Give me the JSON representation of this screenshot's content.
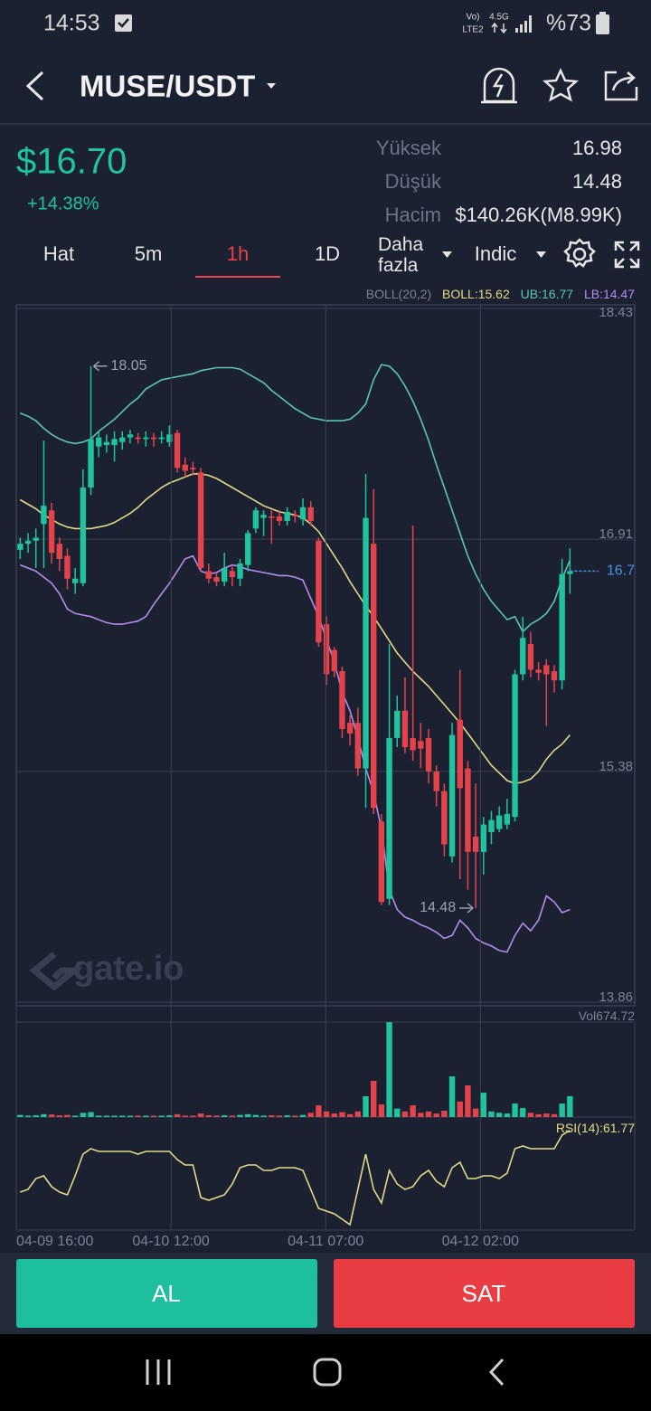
{
  "status_bar": {
    "time": "14:53",
    "volte": "Vo)",
    "lte": "LTE2",
    "net": "4.5G",
    "battery": "%73"
  },
  "header": {
    "pair": "MUSE/USDT"
  },
  "ticker": {
    "price": "$16.70",
    "change": "+14.38%",
    "stats": [
      {
        "label": "Yüksek",
        "value": "16.98"
      },
      {
        "label": "Düşük",
        "value": "14.48"
      },
      {
        "label": "Hacim",
        "value": "$140.26K(M8.99K)"
      }
    ]
  },
  "tabs": [
    "Hat",
    "5m",
    "1h",
    "1D",
    "Daha fazla",
    "Indic"
  ],
  "active_tab": 2,
  "chart_data": {
    "type": "candlestick",
    "up_color": "#1fc39d",
    "down_color": "#e5434b",
    "xlim": [
      -0.5,
      78.25
    ],
    "xticks": [
      {
        "value": -0.5,
        "label": "04-09 16:00"
      },
      {
        "value": 19.2,
        "label": "04-10 12:00"
      },
      {
        "value": 38.9,
        "label": "04-11 07:00"
      },
      {
        "value": 58.6,
        "label": "04-12 02:00"
      }
    ],
    "ylim": [
      13.86,
      18.43
    ],
    "yticks": [
      18.43,
      16.91,
      15.38,
      13.86
    ],
    "grid": true,
    "open": [
      16.84,
      16.88,
      16.9,
      17.01,
      17.1,
      16.88,
      16.8,
      16.62,
      16.62,
      17.25,
      17.52,
      17.53,
      17.53,
      17.55,
      17.58,
      17.58,
      17.57,
      17.58,
      17.57,
      17.55,
      17.61,
      17.4,
      17.38,
      17.35,
      16.7,
      16.66,
      16.63,
      16.7,
      16.65,
      16.74,
      16.98,
      17.05,
      17.06,
      17.06,
      17.03,
      17.07,
      17.04,
      17.12,
      16.9,
      16.35,
      16.18,
      16.04,
      15.7,
      15.7,
      15.4,
      16.88,
      15.05,
      14.54,
      15.6,
      15.78,
      15.6,
      15.58,
      15.6,
      15.38,
      15.25,
      14.82,
      15.72,
      15.4,
      14.95,
      14.85,
      14.98,
      15.0,
      15.03,
      15.08,
      16.02,
      16.22,
      16.05,
      16.08,
      16.04,
      15.98,
      16.68
    ],
    "high": [
      16.92,
      16.95,
      16.98,
      17.56,
      17.15,
      16.92,
      16.85,
      16.72,
      17.37,
      18.05,
      17.62,
      17.6,
      17.62,
      17.62,
      17.63,
      17.61,
      17.62,
      17.61,
      17.62,
      17.66,
      17.63,
      17.45,
      17.42,
      17.38,
      16.75,
      16.69,
      16.82,
      16.73,
      16.78,
      16.97,
      17.12,
      17.1,
      17.1,
      17.1,
      17.12,
      17.1,
      17.18,
      17.16,
      16.92,
      16.4,
      16.2,
      16.07,
      15.75,
      15.8,
      17.34,
      17.24,
      15.1,
      16.22,
      15.88,
      16.0,
      17.0,
      15.7,
      15.66,
      15.42,
      15.3,
      15.7,
      16.05,
      15.45,
      15.3,
      15.08,
      15.12,
      15.15,
      15.2,
      16.05,
      16.4,
      16.3,
      16.1,
      16.12,
      16.08,
      16.78,
      16.85
    ],
    "low": [
      16.78,
      16.82,
      16.72,
      16.72,
      16.75,
      16.7,
      16.58,
      16.55,
      16.6,
      17.2,
      17.45,
      17.48,
      17.42,
      17.5,
      17.54,
      17.54,
      17.52,
      17.52,
      17.54,
      17.52,
      17.35,
      17.32,
      17.33,
      16.7,
      16.62,
      16.6,
      16.6,
      16.6,
      16.6,
      16.7,
      16.95,
      16.93,
      16.88,
      17.0,
      17.0,
      17.02,
      17.0,
      17.0,
      16.2,
      15.95,
      16.0,
      15.6,
      15.55,
      15.35,
      15.14,
      15.1,
      14.5,
      14.5,
      15.54,
      15.5,
      15.45,
      15.4,
      15.3,
      15.15,
      14.82,
      14.78,
      14.67,
      14.6,
      14.48,
      14.7,
      14.9,
      14.98,
      15.0,
      15.05,
      15.98,
      16.0,
      15.98,
      15.68,
      15.9,
      15.92,
      16.55
    ],
    "close": [
      16.88,
      16.9,
      16.92,
      17.13,
      16.82,
      16.78,
      16.65,
      16.65,
      17.25,
      17.57,
      17.58,
      17.55,
      17.57,
      17.58,
      17.6,
      17.57,
      17.58,
      17.57,
      17.58,
      17.6,
      17.38,
      17.36,
      17.37,
      16.72,
      16.65,
      16.63,
      16.72,
      16.66,
      16.75,
      16.95,
      17.1,
      17.07,
      17.05,
      17.03,
      17.09,
      17.06,
      17.12,
      17.03,
      16.23,
      16.02,
      16.04,
      15.66,
      15.63,
      15.4,
      17.05,
      15.14,
      14.52,
      15.6,
      15.78,
      15.54,
      15.52,
      15.53,
      15.38,
      15.25,
      14.9,
      15.62,
      15.27,
      14.85,
      14.85,
      15.03,
      15.06,
      15.09,
      15.1,
      16.02,
      16.26,
      16.05,
      16.03,
      16.02,
      15.98,
      16.68,
      16.7
    ],
    "last_price_color": "#4a90e2",
    "bands": {
      "name": "BOLL(20,2)",
      "middle_label": "BOLL:",
      "upper_label": "UB:",
      "lower_label": "LB:",
      "upper_color": "#5cc6b6",
      "middle_color": "#e3da86",
      "lower_color": "#b48cf0",
      "upper": [
        17.74,
        17.72,
        17.69,
        17.64,
        17.6,
        17.57,
        17.55,
        17.54,
        17.55,
        17.57,
        17.62,
        17.66,
        17.7,
        17.75,
        17.8,
        17.84,
        17.9,
        17.93,
        17.96,
        17.97,
        17.98,
        17.99,
        18.0,
        18.02,
        18.03,
        18.04,
        18.04,
        18.04,
        18.03,
        18.0,
        17.97,
        17.94,
        17.89,
        17.85,
        17.81,
        17.77,
        17.74,
        17.71,
        17.7,
        17.69,
        17.69,
        17.69,
        17.7,
        17.74,
        17.8,
        17.96,
        18.06,
        18.05,
        18.0,
        17.92,
        17.82,
        17.7,
        17.56,
        17.4,
        17.25,
        17.1,
        16.95,
        16.8,
        16.68,
        16.58,
        16.5,
        16.44,
        16.38,
        16.4,
        16.3,
        16.35,
        16.38,
        16.42,
        16.5,
        16.65,
        16.77
      ],
      "middle": [
        17.17,
        17.14,
        17.11,
        17.07,
        17.04,
        17.01,
        16.99,
        16.98,
        16.98,
        16.98,
        16.99,
        17.0,
        17.02,
        17.05,
        17.08,
        17.12,
        17.17,
        17.21,
        17.25,
        17.28,
        17.3,
        17.32,
        17.34,
        17.34,
        17.33,
        17.31,
        17.28,
        17.25,
        17.22,
        17.19,
        17.16,
        17.13,
        17.11,
        17.09,
        17.08,
        17.07,
        17.05,
        17.01,
        16.96,
        16.88,
        16.8,
        16.72,
        16.63,
        16.55,
        16.47,
        16.4,
        16.32,
        16.24,
        16.16,
        16.1,
        16.04,
        15.99,
        15.94,
        15.88,
        15.82,
        15.76,
        15.7,
        15.63,
        15.56,
        15.49,
        15.42,
        15.37,
        15.32,
        15.3,
        15.31,
        15.33,
        15.38,
        15.46,
        15.52,
        15.56,
        15.62
      ],
      "lower": [
        16.74,
        16.72,
        16.7,
        16.66,
        16.62,
        16.55,
        16.45,
        16.42,
        16.41,
        16.4,
        16.38,
        16.36,
        16.35,
        16.35,
        16.36,
        16.37,
        16.4,
        16.48,
        16.55,
        16.62,
        16.7,
        16.78,
        16.8,
        16.7,
        16.68,
        16.69,
        16.72,
        16.74,
        16.73,
        16.71,
        16.7,
        16.69,
        16.68,
        16.67,
        16.67,
        16.66,
        16.64,
        16.52,
        16.4,
        16.25,
        16.1,
        15.9,
        15.78,
        15.6,
        15.4,
        15.24,
        15.0,
        14.6,
        14.47,
        14.42,
        14.4,
        14.37,
        14.35,
        14.32,
        14.28,
        14.3,
        14.4,
        14.35,
        14.28,
        14.25,
        14.23,
        14.2,
        14.19,
        14.3,
        14.38,
        14.33,
        14.4,
        14.56,
        14.52,
        14.45,
        14.47
      ]
    },
    "volume": {
      "label": "Vol",
      "ylim": [
        0,
        674.72
      ],
      "values": [
        15,
        10,
        12,
        20,
        18,
        12,
        15,
        10,
        30,
        35,
        10,
        8,
        8,
        8,
        8,
        6,
        8,
        6,
        8,
        12,
        20,
        10,
        8,
        25,
        12,
        10,
        12,
        10,
        15,
        20,
        15,
        10,
        12,
        10,
        12,
        10,
        15,
        30,
        83,
        40,
        25,
        35,
        20,
        40,
        148,
        257,
        90,
        674,
        60,
        40,
        83,
        30,
        40,
        25,
        45,
        289,
        110,
        225,
        60,
        173,
        40,
        30,
        25,
        96,
        64,
        30,
        20,
        25,
        20,
        96,
        148
      ]
    },
    "rsi": {
      "label": "RSI(14):",
      "color": "#e3da86",
      "ylim": [
        25,
        65
      ],
      "values": [
        39,
        40,
        44,
        45,
        41,
        39,
        38,
        45,
        53,
        55,
        54,
        54,
        54,
        54,
        54,
        53,
        54,
        54,
        54,
        54,
        51,
        49,
        49,
        37,
        36,
        37,
        38,
        42,
        48,
        49,
        49,
        47,
        47,
        48,
        48,
        48,
        47,
        40,
        33,
        32,
        31,
        29,
        27,
        40,
        53,
        40,
        35,
        47,
        42,
        40,
        41,
        45,
        47,
        43,
        41,
        48,
        50,
        44,
        44,
        45,
        45,
        44,
        46,
        55,
        56,
        55,
        55,
        55,
        55,
        60,
        61.77
      ]
    }
  },
  "watermark": "gate.io",
  "buttons": {
    "buy": "AL",
    "sell": "SAT"
  }
}
